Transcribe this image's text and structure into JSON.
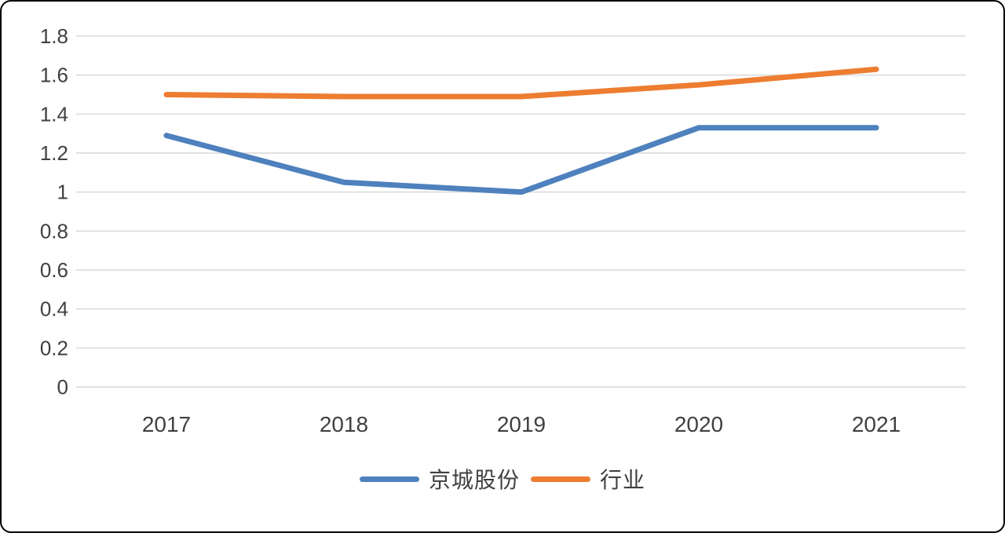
{
  "chart_data": {
    "type": "line",
    "title": "",
    "xlabel": "",
    "ylabel": "",
    "categories": [
      "2017",
      "2018",
      "2019",
      "2020",
      "2021"
    ],
    "series": [
      {
        "name": "京城股份",
        "color": "#4E81BD",
        "values": [
          1.29,
          1.05,
          1.0,
          1.33,
          1.33
        ]
      },
      {
        "name": "行业",
        "color": "#ED7D31",
        "values": [
          1.5,
          1.49,
          1.49,
          1.55,
          1.63
        ]
      }
    ],
    "ylim": [
      0,
      1.8
    ],
    "yticks": [
      0,
      0.2,
      0.4,
      0.6,
      0.8,
      1,
      1.2,
      1.4,
      1.6,
      1.8
    ],
    "grid": true,
    "legend_position": "bottom"
  },
  "style": {
    "gridline_color": "#D9D9D9",
    "axis_text_color": "#404040",
    "background_color": "#FFFFFF"
  }
}
